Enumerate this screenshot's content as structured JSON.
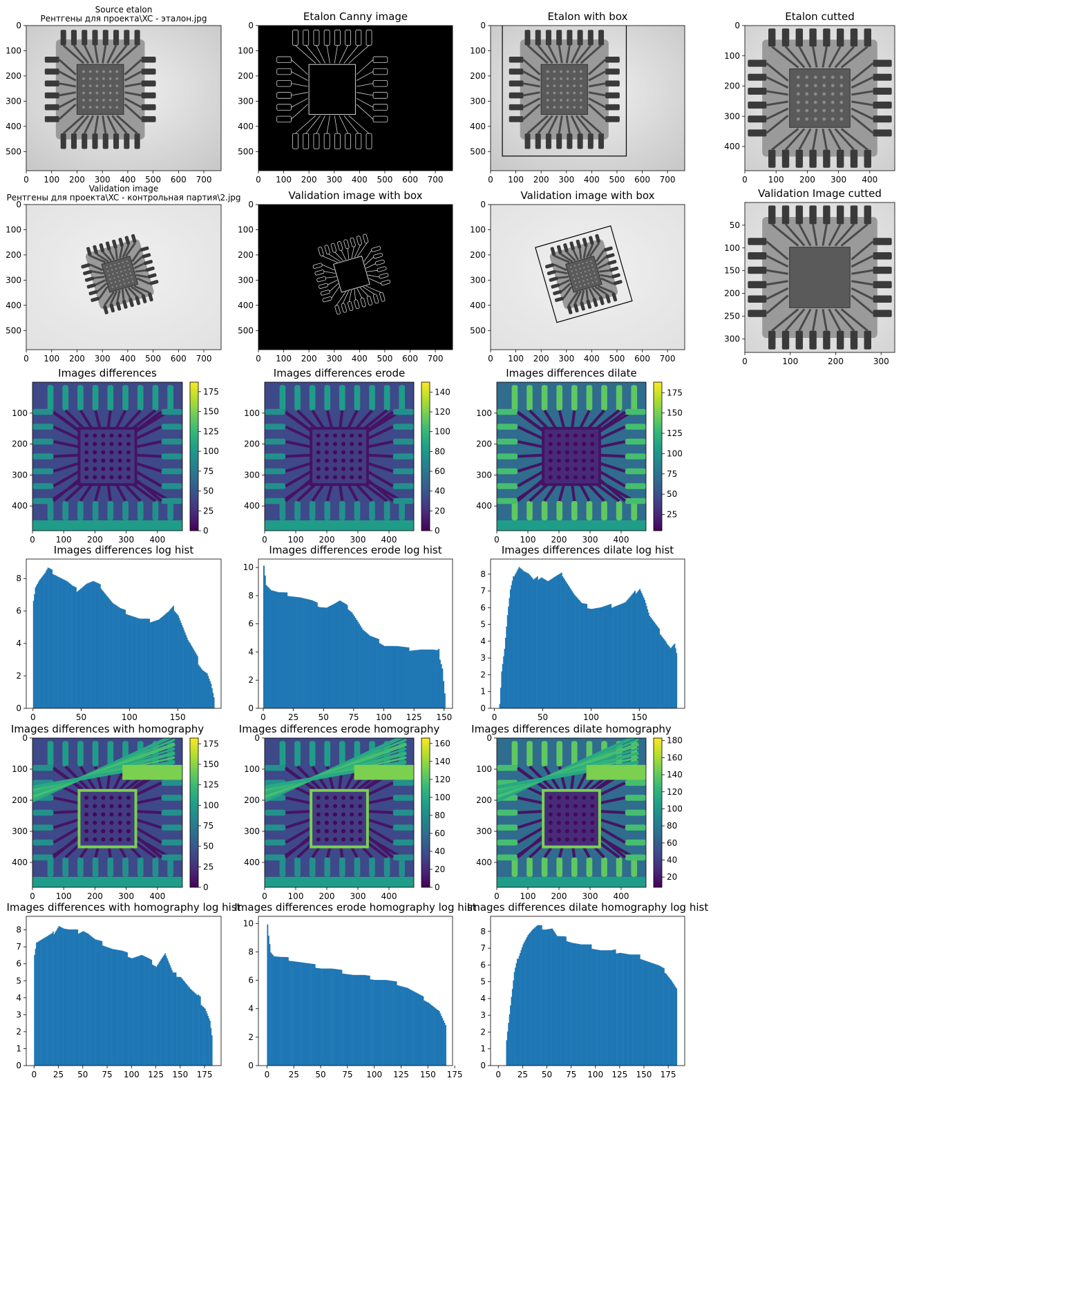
{
  "figure": {
    "panels": [
      {
        "id": "etalon_src",
        "title": [
          "Source etalon",
          "Рентгены для проекта\\XC - эталон.jpg"
        ],
        "xticks": [
          0,
          100,
          200,
          300,
          400,
          500,
          600,
          700
        ],
        "yticks": [
          0,
          100,
          200,
          300,
          400,
          500
        ],
        "xmax": 768,
        "ymax": 576,
        "kind": "xray",
        "bg": "#c9c9c9",
        "chip": {
          "cx": 0.38,
          "cy": 0.44,
          "w": 0.57,
          "h": 0.82,
          "rot": 0
        }
      },
      {
        "id": "etalon_canny",
        "title": [
          "Etalon Canny image"
        ],
        "xticks": [
          0,
          100,
          200,
          300,
          400,
          500,
          600,
          700
        ],
        "yticks": [
          0,
          100,
          200,
          300,
          400,
          500
        ],
        "xmax": 768,
        "ymax": 576,
        "kind": "canny",
        "chip": {
          "cx": 0.38,
          "cy": 0.44,
          "w": 0.57,
          "h": 0.82,
          "rot": 0
        }
      },
      {
        "id": "etalon_box",
        "title": [
          "Etalon with box"
        ],
        "xticks": [
          0,
          100,
          200,
          300,
          400,
          500,
          600,
          700
        ],
        "yticks": [
          0,
          100,
          200,
          300,
          400,
          500
        ],
        "xmax": 768,
        "ymax": 576,
        "kind": "xray",
        "bg": "#c9c9c9",
        "chip": {
          "cx": 0.38,
          "cy": 0.44,
          "w": 0.57,
          "h": 0.82,
          "rot": 0
        },
        "box": true
      },
      {
        "id": "etalon_cut",
        "title": [
          "Etalon cutted"
        ],
        "xticks": [
          0,
          100,
          200,
          300,
          400
        ],
        "yticks": [
          0,
          100,
          200,
          300,
          400
        ],
        "xmax": 480,
        "ymax": 480,
        "kind": "xray",
        "bg": "#d0d0d0",
        "chip": {
          "cx": 0.5,
          "cy": 0.5,
          "w": 0.96,
          "h": 0.96,
          "rot": 0
        }
      },
      {
        "id": "valid_src",
        "title": [
          "Validation image",
          "Рентгены для проекта\\XC - контрольная партия\\2.jpg"
        ],
        "xticks": [
          0,
          100,
          200,
          300,
          400,
          500,
          600,
          700
        ],
        "yticks": [
          0,
          100,
          200,
          300,
          400,
          500
        ],
        "xmax": 768,
        "ymax": 576,
        "kind": "xray",
        "bg": "#e2e2e2",
        "chip": {
          "cx": 0.48,
          "cy": 0.48,
          "w": 0.36,
          "h": 0.48,
          "rot": -16
        }
      },
      {
        "id": "valid_canny",
        "title": [
          "Validation image with box"
        ],
        "xticks": [
          0,
          100,
          200,
          300,
          400,
          500,
          600,
          700
        ],
        "yticks": [
          0,
          100,
          200,
          300,
          400,
          500
        ],
        "xmax": 768,
        "ymax": 576,
        "kind": "canny",
        "chip": {
          "cx": 0.48,
          "cy": 0.48,
          "w": 0.36,
          "h": 0.48,
          "rot": -16
        }
      },
      {
        "id": "valid_box",
        "title": [
          "Validation image with box"
        ],
        "xticks": [
          0,
          100,
          200,
          300,
          400,
          500,
          600,
          700
        ],
        "yticks": [
          0,
          100,
          200,
          300,
          400,
          500
        ],
        "xmax": 768,
        "ymax": 576,
        "kind": "xray",
        "bg": "#e2e2e2",
        "chip": {
          "cx": 0.48,
          "cy": 0.48,
          "w": 0.36,
          "h": 0.48,
          "rot": -16
        },
        "box": true
      },
      {
        "id": "valid_cut",
        "title": [
          "Validation Image cutted"
        ],
        "xticks": [
          0,
          100,
          200,
          300
        ],
        "yticks": [
          50,
          100,
          150,
          200,
          250,
          300
        ],
        "xmax": 330,
        "ymax": 330,
        "kind": "xray",
        "bg": "#d6d6d6",
        "chip": {
          "cx": 0.5,
          "cy": 0.5,
          "w": 0.96,
          "h": 0.96,
          "rot": 0
        },
        "square": true
      },
      {
        "id": "diff",
        "title": [
          "Images differences"
        ],
        "kind": "heat",
        "xticks": [
          0,
          100,
          200,
          300,
          400
        ],
        "yticks": [
          100,
          200,
          300,
          400
        ],
        "xmax": 480,
        "ymax": 480,
        "cbar": [
          0,
          25,
          50,
          75,
          100,
          125,
          150,
          175
        ],
        "cmin": 0,
        "cmax": 187
      },
      {
        "id": "diff_erode",
        "title": [
          "Images differences erode"
        ],
        "kind": "heat",
        "xticks": [
          0,
          100,
          200,
          300,
          400
        ],
        "yticks": [
          100,
          200,
          300,
          400
        ],
        "xmax": 480,
        "ymax": 480,
        "cbar": [
          0,
          20,
          40,
          60,
          80,
          100,
          120,
          140
        ],
        "cmin": 0,
        "cmax": 150
      },
      {
        "id": "diff_dilate",
        "title": [
          "Images differences dilate"
        ],
        "kind": "heat",
        "bright": true,
        "xticks": [
          0,
          100,
          200,
          300,
          400
        ],
        "yticks": [
          100,
          200,
          300,
          400
        ],
        "xmax": 480,
        "ymax": 480,
        "cbar": [
          25,
          50,
          75,
          100,
          125,
          150,
          175
        ],
        "cmin": 5,
        "cmax": 188
      },
      {
        "id": "diff_h",
        "title": [
          "Images differences with homography"
        ],
        "kind": "heat",
        "homog": true,
        "xticks": [
          0,
          100,
          200,
          300,
          400
        ],
        "yticks": [
          0,
          100,
          200,
          300,
          400
        ],
        "xmax": 480,
        "ymax": 480,
        "cbar": [
          0,
          25,
          50,
          75,
          100,
          125,
          150,
          175
        ],
        "cmin": 0,
        "cmax": 182
      },
      {
        "id": "diff_erode_h",
        "title": [
          "Images differences erode homography"
        ],
        "kind": "heat",
        "homog": true,
        "xticks": [
          0,
          100,
          200,
          300,
          400
        ],
        "yticks": [
          0,
          100,
          200,
          300,
          400
        ],
        "xmax": 480,
        "ymax": 480,
        "cbar": [
          0,
          20,
          40,
          60,
          80,
          100,
          120,
          140,
          160
        ],
        "cmin": 0,
        "cmax": 166
      },
      {
        "id": "diff_dilate_h",
        "title": [
          "Images differences dilate homography"
        ],
        "kind": "heat",
        "homog": true,
        "bright": true,
        "xticks": [
          0,
          100,
          200,
          300,
          400
        ],
        "yticks": [
          0,
          100,
          200,
          300,
          400
        ],
        "xmax": 480,
        "ymax": 480,
        "cbar": [
          20,
          40,
          60,
          80,
          100,
          120,
          140,
          160,
          180
        ],
        "cmin": 8,
        "cmax": 183
      }
    ],
    "colors": {
      "hist_fill": "#1f77b4",
      "box": "#000000"
    }
  },
  "chart_data": [
    {
      "type": "bar",
      "title": "Images differences log hist",
      "xlabel": "",
      "ylabel": "",
      "xlim": [
        -7,
        195
      ],
      "ylim": [
        0,
        9.2
      ],
      "xticks": [
        0,
        50,
        100,
        150
      ],
      "yticks": [
        0,
        2,
        4,
        6,
        8
      ],
      "x_start": 0,
      "x_end": 187,
      "profile": [
        [
          0,
          6.7
        ],
        [
          2,
          7.5
        ],
        [
          6,
          7.9
        ],
        [
          12,
          8.3
        ],
        [
          15,
          8.6
        ],
        [
          20,
          8.4
        ],
        [
          25,
          8.2
        ],
        [
          30,
          8.0
        ],
        [
          35,
          7.8
        ],
        [
          40,
          7.5
        ],
        [
          45,
          7.3
        ],
        [
          50,
          7.5
        ],
        [
          55,
          7.7
        ],
        [
          62,
          7.8
        ],
        [
          70,
          7.5
        ],
        [
          76,
          7.0
        ],
        [
          82,
          6.5
        ],
        [
          90,
          6.1
        ],
        [
          100,
          5.8
        ],
        [
          110,
          5.5
        ],
        [
          120,
          5.4
        ],
        [
          130,
          5.5
        ],
        [
          140,
          5.9
        ],
        [
          145,
          6.2
        ],
        [
          150,
          5.8
        ],
        [
          155,
          5.0
        ],
        [
          160,
          4.2
        ],
        [
          165,
          3.6
        ],
        [
          170,
          3.0
        ],
        [
          175,
          2.5
        ],
        [
          180,
          2.2
        ],
        [
          184,
          1.5
        ],
        [
          187,
          0.6
        ]
      ]
    },
    {
      "type": "bar",
      "title": "Images differences erode log hist",
      "xlabel": "",
      "ylabel": "",
      "xlim": [
        -4,
        157
      ],
      "ylim": [
        0,
        10.6
      ],
      "xticks": [
        0,
        25,
        50,
        75,
        100,
        125,
        150
      ],
      "yticks": [
        0,
        2,
        4,
        6,
        8,
        10
      ],
      "x_start": 0,
      "x_end": 150,
      "profile": [
        [
          0,
          10.2
        ],
        [
          2,
          8.8
        ],
        [
          6,
          8.4
        ],
        [
          12,
          8.2
        ],
        [
          20,
          8.1
        ],
        [
          30,
          7.9
        ],
        [
          40,
          7.6
        ],
        [
          46,
          7.3
        ],
        [
          52,
          7.2
        ],
        [
          58,
          7.4
        ],
        [
          63,
          7.6
        ],
        [
          68,
          7.3
        ],
        [
          73,
          6.9
        ],
        [
          78,
          6.2
        ],
        [
          82,
          5.6
        ],
        [
          88,
          5.1
        ],
        [
          95,
          4.8
        ],
        [
          100,
          4.5
        ],
        [
          110,
          4.4
        ],
        [
          120,
          4.2
        ],
        [
          130,
          4.2
        ],
        [
          140,
          4.1
        ],
        [
          145,
          4.0
        ],
        [
          148,
          3.0
        ],
        [
          150,
          1.2
        ]
      ]
    },
    {
      "type": "bar",
      "title": "Images differences dilate log hist",
      "xlabel": "",
      "ylabel": "",
      "xlim": [
        -4,
        197
      ],
      "ylim": [
        0,
        8.9
      ],
      "xticks": [
        0,
        50,
        100,
        150
      ],
      "yticks": [
        0,
        1,
        2,
        3,
        4,
        5,
        6,
        7,
        8
      ],
      "x_start": 5,
      "x_end": 188,
      "profile": [
        [
          5,
          0.3
        ],
        [
          7,
          2.2
        ],
        [
          10,
          3.5
        ],
        [
          13,
          5.5
        ],
        [
          16,
          7.0
        ],
        [
          20,
          8.0
        ],
        [
          25,
          8.5
        ],
        [
          30,
          8.2
        ],
        [
          35,
          8.0
        ],
        [
          40,
          7.6
        ],
        [
          48,
          7.9
        ],
        [
          55,
          7.6
        ],
        [
          62,
          7.8
        ],
        [
          70,
          8.0
        ],
        [
          76,
          7.4
        ],
        [
          82,
          6.8
        ],
        [
          90,
          6.2
        ],
        [
          100,
          6.0
        ],
        [
          110,
          6.0
        ],
        [
          120,
          6.1
        ],
        [
          135,
          6.3
        ],
        [
          142,
          6.7
        ],
        [
          150,
          7.2
        ],
        [
          155,
          6.5
        ],
        [
          160,
          5.5
        ],
        [
          168,
          4.8
        ],
        [
          175,
          4.2
        ],
        [
          182,
          3.6
        ],
        [
          186,
          3.8
        ],
        [
          188,
          3.2
        ]
      ]
    },
    {
      "type": "bar",
      "title": "Images differences with homography log hist",
      "xlabel": "",
      "ylabel": "",
      "xlim": [
        -8,
        192
      ],
      "ylim": [
        0,
        8.8
      ],
      "xticks": [
        0,
        25,
        50,
        75,
        100,
        125,
        150,
        175
      ],
      "yticks": [
        0,
        1,
        2,
        3,
        4,
        5,
        6,
        7,
        8
      ],
      "x_start": 0,
      "x_end": 182,
      "profile": [
        [
          0,
          6.6
        ],
        [
          2,
          7.3
        ],
        [
          10,
          7.5
        ],
        [
          18,
          7.7
        ],
        [
          25,
          8.3
        ],
        [
          30,
          8.1
        ],
        [
          35,
          8.0
        ],
        [
          45,
          7.9
        ],
        [
          50,
          8.0
        ],
        [
          55,
          7.8
        ],
        [
          62,
          7.4
        ],
        [
          70,
          7.2
        ],
        [
          80,
          6.9
        ],
        [
          90,
          6.7
        ],
        [
          100,
          6.4
        ],
        [
          110,
          6.5
        ],
        [
          118,
          6.2
        ],
        [
          125,
          5.9
        ],
        [
          130,
          6.3
        ],
        [
          134,
          6.6
        ],
        [
          138,
          6.0
        ],
        [
          142,
          5.4
        ],
        [
          150,
          5.3
        ],
        [
          155,
          4.9
        ],
        [
          160,
          4.5
        ],
        [
          168,
          4.0
        ],
        [
          175,
          3.5
        ],
        [
          180,
          2.7
        ],
        [
          182,
          1.8
        ]
      ]
    },
    {
      "type": "bar",
      "title": "Images differences erode homography log hist",
      "xlabel": "",
      "ylabel": "",
      "xlim": [
        -8,
        173
      ],
      "ylim": [
        0,
        10.5
      ],
      "xticks": [
        0,
        25,
        50,
        75,
        100,
        125,
        150,
        175
      ],
      "yticks": [
        0,
        2,
        4,
        6,
        8,
        10
      ],
      "x_start": 0,
      "x_end": 166,
      "profile": [
        [
          0,
          10.0
        ],
        [
          1,
          9.2
        ],
        [
          3,
          8.0
        ],
        [
          6,
          7.7
        ],
        [
          12,
          7.6
        ],
        [
          20,
          7.5
        ],
        [
          30,
          7.3
        ],
        [
          40,
          7.1
        ],
        [
          50,
          6.9
        ],
        [
          60,
          6.8
        ],
        [
          70,
          6.6
        ],
        [
          80,
          6.4
        ],
        [
          90,
          6.3
        ],
        [
          100,
          6.1
        ],
        [
          110,
          6.0
        ],
        [
          120,
          5.8
        ],
        [
          130,
          5.5
        ],
        [
          140,
          5.0
        ],
        [
          150,
          4.5
        ],
        [
          160,
          3.8
        ],
        [
          166,
          2.7
        ]
      ]
    },
    {
      "type": "bar",
      "title": "Images differences dilate homography log hist",
      "xlabel": "",
      "ylabel": "",
      "xlim": [
        -8,
        192
      ],
      "ylim": [
        0,
        8.9
      ],
      "xticks": [
        0,
        25,
        50,
        75,
        100,
        125,
        150,
        175
      ],
      "yticks": [
        0,
        1,
        2,
        3,
        4,
        5,
        6,
        7,
        8
      ],
      "x_start": 8,
      "x_end": 183,
      "profile": [
        [
          8,
          1.5
        ],
        [
          10,
          2.5
        ],
        [
          13,
          4.0
        ],
        [
          16,
          5.5
        ],
        [
          20,
          6.5
        ],
        [
          25,
          7.3
        ],
        [
          30,
          7.8
        ],
        [
          35,
          8.1
        ],
        [
          40,
          8.3
        ],
        [
          48,
          8.2
        ],
        [
          55,
          8.2
        ],
        [
          60,
          7.7
        ],
        [
          68,
          7.6
        ],
        [
          75,
          7.4
        ],
        [
          85,
          7.2
        ],
        [
          95,
          7.1
        ],
        [
          105,
          6.9
        ],
        [
          115,
          6.8
        ],
        [
          125,
          6.8
        ],
        [
          135,
          6.6
        ],
        [
          145,
          6.5
        ],
        [
          155,
          6.2
        ],
        [
          165,
          5.9
        ],
        [
          172,
          5.6
        ],
        [
          178,
          5.1
        ],
        [
          183,
          4.6
        ]
      ]
    }
  ]
}
